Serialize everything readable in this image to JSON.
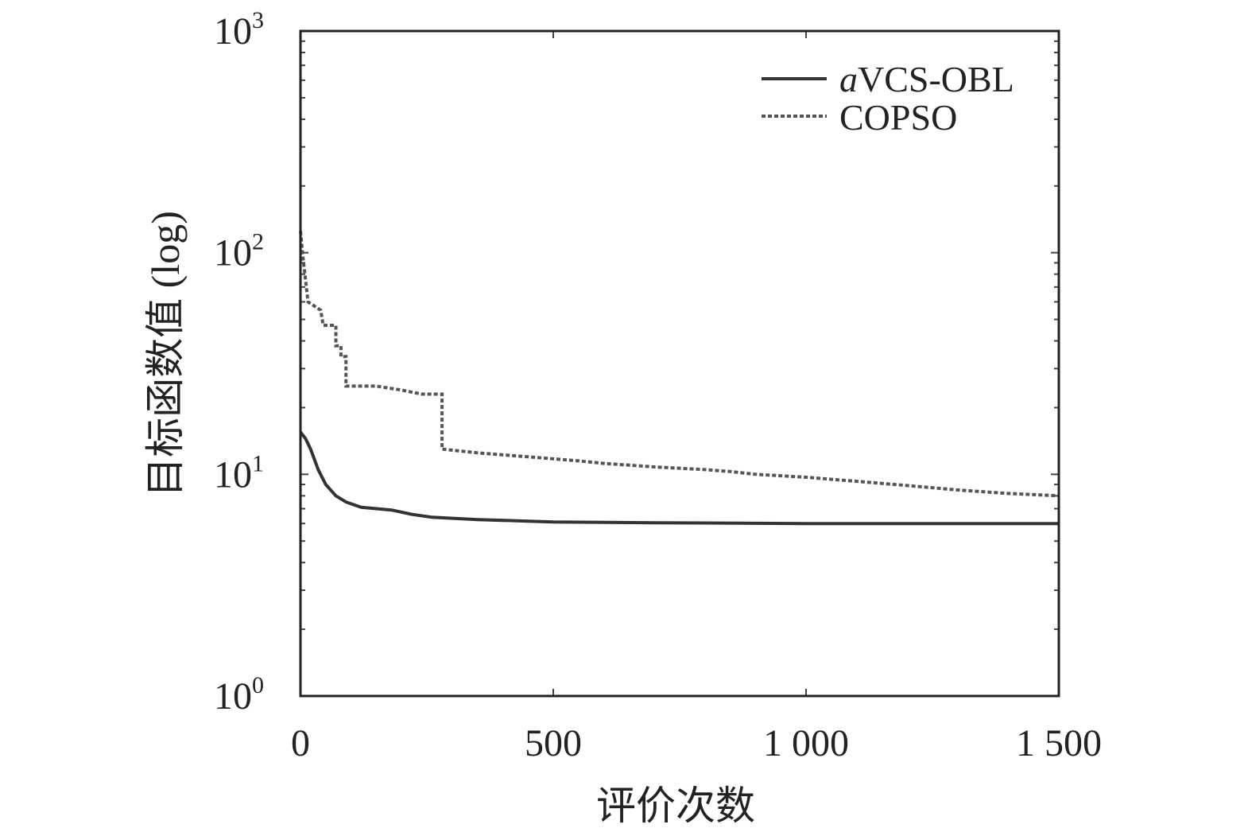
{
  "chart_data": {
    "type": "line",
    "xlabel": "评价次数",
    "ylabel": "目标函数值 (log)",
    "yscale": "log",
    "xlim": [
      0,
      1500
    ],
    "ylim": [
      1,
      1000
    ],
    "grid": false,
    "legend_position": "top-right",
    "x_ticks": [
      {
        "value": 0,
        "label": "0"
      },
      {
        "value": 500,
        "label": "500"
      },
      {
        "value": 1000,
        "label": "1 000"
      },
      {
        "value": 1500,
        "label": "1 500"
      }
    ],
    "y_ticks": [
      {
        "value": 1,
        "base": "10",
        "exp": "0"
      },
      {
        "value": 10,
        "base": "10",
        "exp": "1"
      },
      {
        "value": 100,
        "base": "10",
        "exp": "2"
      },
      {
        "value": 1000,
        "base": "10",
        "exp": "3"
      }
    ],
    "series": [
      {
        "name_italic": "a",
        "name_rest": "VCS-OBL",
        "style": "solid",
        "color": "#333333",
        "points": [
          [
            0,
            15.5
          ],
          [
            10,
            14.5
          ],
          [
            20,
            13
          ],
          [
            35,
            10.5
          ],
          [
            50,
            9
          ],
          [
            70,
            8
          ],
          [
            90,
            7.5
          ],
          [
            120,
            7.1
          ],
          [
            180,
            6.9
          ],
          [
            220,
            6.6
          ],
          [
            260,
            6.4
          ],
          [
            350,
            6.25
          ],
          [
            500,
            6.1
          ],
          [
            700,
            6.05
          ],
          [
            1000,
            6.0
          ],
          [
            1400,
            6.0
          ],
          [
            1500,
            6.0
          ]
        ]
      },
      {
        "name": "COPSO",
        "style": "dashed",
        "color": "#555555",
        "points": [
          [
            0,
            125
          ],
          [
            5,
            95
          ],
          [
            10,
            75
          ],
          [
            15,
            60
          ],
          [
            40,
            55
          ],
          [
            45,
            47
          ],
          [
            70,
            47
          ],
          [
            70,
            38
          ],
          [
            80,
            38
          ],
          [
            80,
            34
          ],
          [
            90,
            34
          ],
          [
            90,
            25
          ],
          [
            150,
            25
          ],
          [
            200,
            24
          ],
          [
            240,
            23
          ],
          [
            280,
            23
          ],
          [
            280,
            13
          ],
          [
            350,
            12.5
          ],
          [
            450,
            12
          ],
          [
            550,
            11.5
          ],
          [
            600,
            11.2
          ],
          [
            700,
            10.8
          ],
          [
            800,
            10.5
          ],
          [
            850,
            10.3
          ],
          [
            900,
            10
          ],
          [
            1000,
            9.7
          ],
          [
            1100,
            9.3
          ],
          [
            1200,
            8.9
          ],
          [
            1300,
            8.5
          ],
          [
            1400,
            8.2
          ],
          [
            1500,
            8.0
          ]
        ]
      }
    ]
  }
}
